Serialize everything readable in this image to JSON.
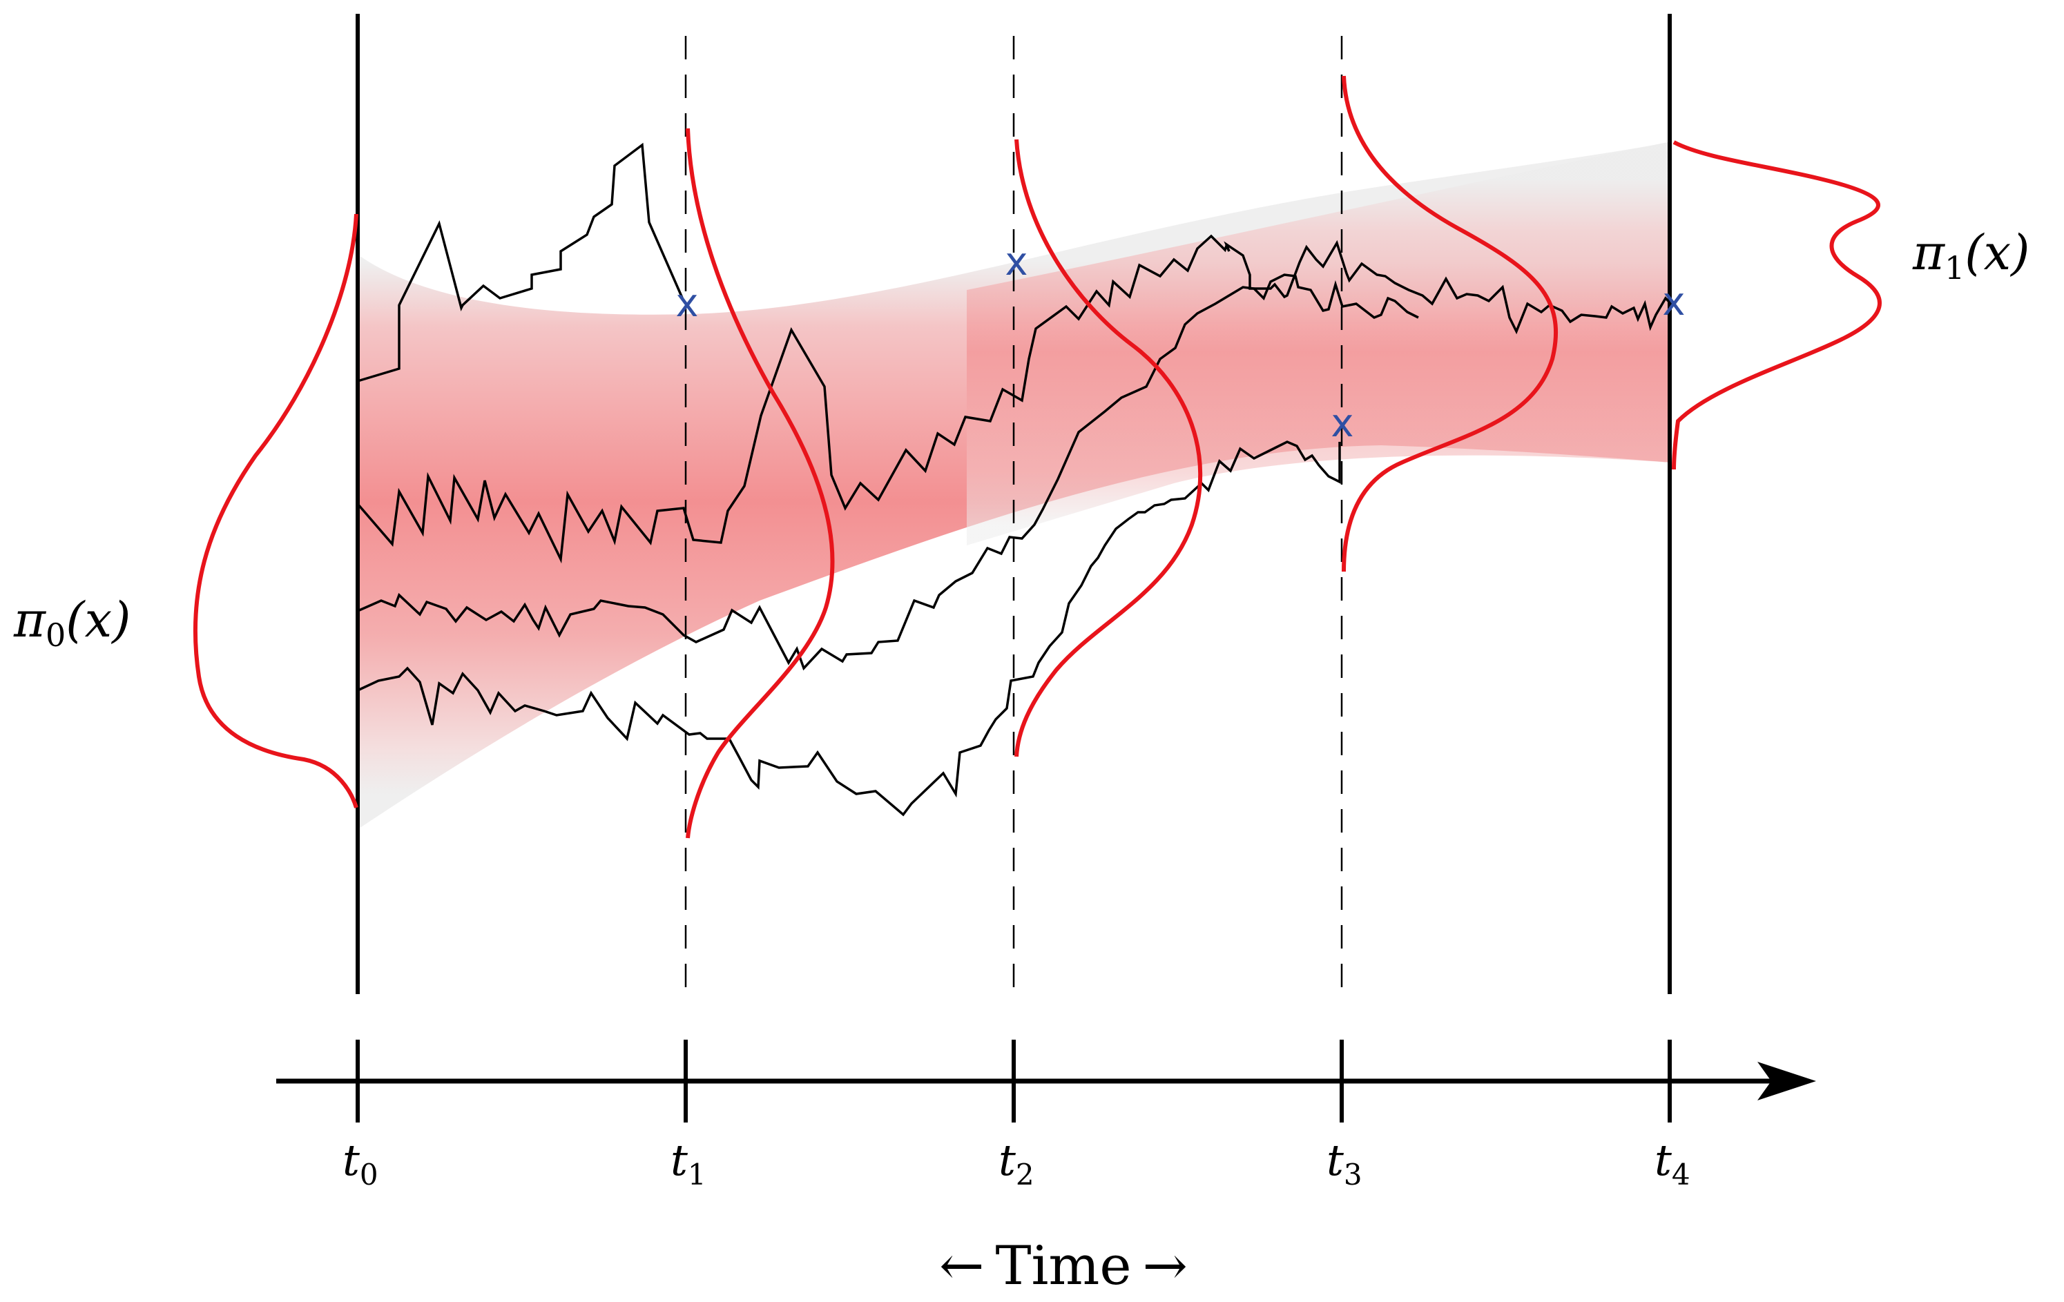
{
  "diagram": {
    "distributions": {
      "initial": {
        "symbol": "π",
        "subscript": "0",
        "argument": "(x)"
      },
      "target": {
        "symbol": "π",
        "subscript": "1",
        "argument": "(x)"
      }
    },
    "axis": {
      "label": "Time",
      "left_arrow": "←",
      "right_arrow": "→"
    },
    "time_ticks": [
      {
        "symbol": "t",
        "subscript": "0",
        "line": "solid"
      },
      {
        "symbol": "t",
        "subscript": "1",
        "line": "dashed"
      },
      {
        "symbol": "t",
        "subscript": "2",
        "line": "dashed"
      },
      {
        "symbol": "t",
        "subscript": "3",
        "line": "dashed"
      },
      {
        "symbol": "t",
        "subscript": "4",
        "line": "solid"
      }
    ],
    "resample_marker": "x",
    "colors": {
      "density": "#e8141b",
      "band": "#f28a8c",
      "band_edge": "#e6e6e6",
      "trajectory": "#000000",
      "marker": "#2f4fa3",
      "axis": "#000000"
    }
  }
}
